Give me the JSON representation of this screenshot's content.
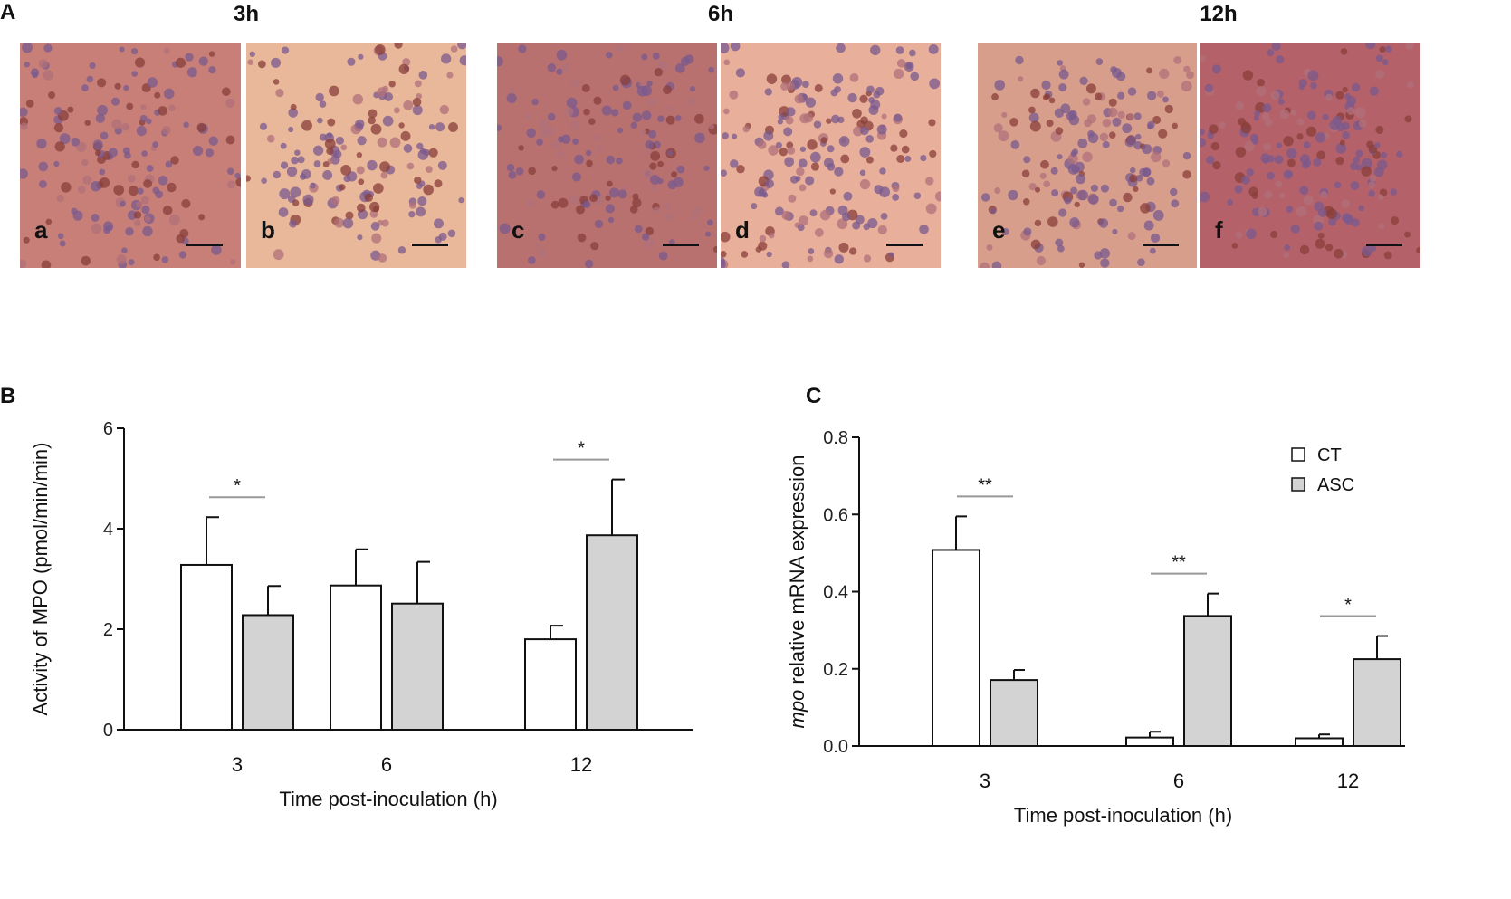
{
  "panels": {
    "a": {
      "letter": "A"
    },
    "b": {
      "letter": "B"
    },
    "c": {
      "letter": "C"
    }
  },
  "micrographs": {
    "times": [
      "3h",
      "6h",
      "12h"
    ],
    "images": [
      {
        "sub": "a",
        "tone": "#c77f78"
      },
      {
        "sub": "b",
        "tone": "#e9b79a"
      },
      {
        "sub": "c",
        "tone": "#b8716f"
      },
      {
        "sub": "d",
        "tone": "#e8b09a"
      },
      {
        "sub": "e",
        "tone": "#d89e8c"
      },
      {
        "sub": "f",
        "tone": "#b5616a"
      }
    ]
  },
  "chart_data": [
    {
      "type": "bar",
      "title": "",
      "xlabel": "Time post-inoculation (h)",
      "ylabel": "Activity of  MPO (pmol/min/min)",
      "categories": [
        "3",
        "6",
        "12"
      ],
      "ylim": [
        0,
        6
      ],
      "yticks": [
        0,
        2,
        4,
        6
      ],
      "grid": false,
      "series": [
        {
          "name": "",
          "color": "#ffffff",
          "values": [
            3.28,
            2.87,
            1.8
          ],
          "errors": [
            0.95,
            0.72,
            0.27
          ]
        },
        {
          "name": "",
          "color": "#d3d3d3",
          "values": [
            2.28,
            2.51,
            3.87
          ],
          "errors": [
            0.58,
            0.83,
            1.11
          ]
        }
      ],
      "significance": [
        {
          "category": 0,
          "label": "*"
        },
        {
          "category": 2,
          "label": "*"
        }
      ]
    },
    {
      "type": "bar",
      "title": "",
      "xlabel": "Time post-inoculation (h)",
      "ylabel_italic": "mpo",
      "ylabel": " relative mRNA expression",
      "categories": [
        "3",
        "6",
        "12"
      ],
      "ylim": [
        0,
        0.8
      ],
      "yticks": [
        "0.0",
        "0.2",
        "0.4",
        "0.6",
        "0.8"
      ],
      "grid": false,
      "legend_position": "top-right",
      "series": [
        {
          "name": "CT",
          "color": "#ffffff",
          "values": [
            0.508,
            0.022,
            0.02
          ],
          "errors": [
            0.087,
            0.015,
            0.01
          ]
        },
        {
          "name": "ASC",
          "color": "#d3d3d3",
          "values": [
            0.171,
            0.337,
            0.225
          ],
          "errors": [
            0.026,
            0.058,
            0.06
          ]
        }
      ],
      "significance": [
        {
          "category": 0,
          "label": "**"
        },
        {
          "category": 1,
          "label": "**"
        },
        {
          "category": 2,
          "label": "*"
        }
      ]
    }
  ]
}
